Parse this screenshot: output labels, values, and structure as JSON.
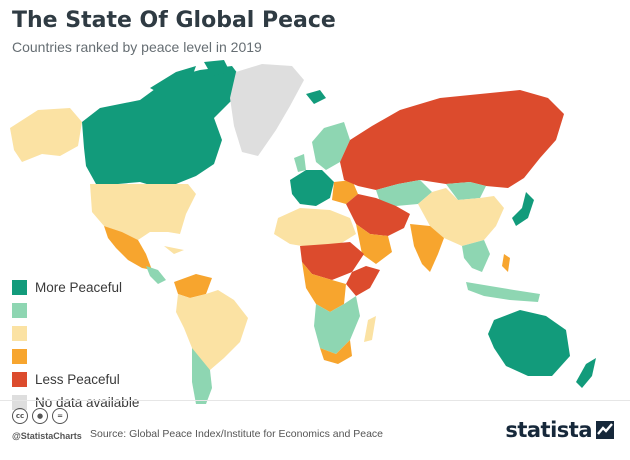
{
  "title": "The State Of Global Peace",
  "subtitle": "Countries ranked by peace level in 2019",
  "colors": {
    "very_high": "#129b7b",
    "high": "#8ed6b2",
    "medium": "#fbe2a3",
    "low": "#f7a52e",
    "very_low": "#dc4b2d",
    "no_data": "#dedede"
  },
  "legend": [
    {
      "label": "More Peaceful",
      "color": "#129b7b"
    },
    {
      "label": "",
      "color": "#8ed6b2"
    },
    {
      "label": "",
      "color": "#fbe2a3"
    },
    {
      "label": "",
      "color": "#f7a52e"
    },
    {
      "label": "Less Peaceful",
      "color": "#dc4b2d"
    },
    {
      "label": "No data available",
      "color": "#dedede"
    }
  ],
  "footer": {
    "handle": "@StatistaCharts",
    "source": "Source: Global Peace Index/Institute for Economics and Peace",
    "brand": "statista",
    "license_icons": [
      "cc-icon",
      "by-icon",
      "nd-icon"
    ]
  }
}
